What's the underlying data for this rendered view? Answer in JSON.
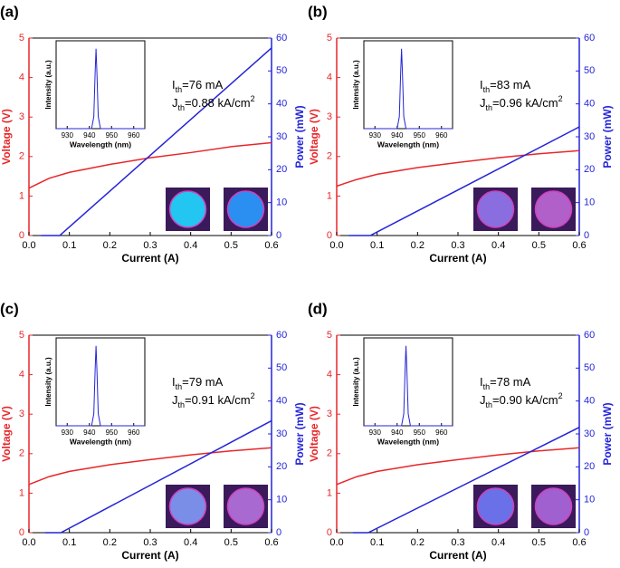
{
  "chart_data": [
    {
      "type": "line",
      "panel_label": "(a)",
      "xlabel": "Current (A)",
      "ylabel": "Voltage (V)",
      "y2label": "Power (mW)",
      "xlim": [
        0,
        0.6
      ],
      "xticks": [
        {
          "value": 0,
          "label": "0.0"
        },
        0.1,
        0.2,
        0.3,
        0.4,
        0.5,
        0.6
      ],
      "ylim": [
        0,
        5
      ],
      "yticks": [
        0,
        1,
        2,
        3,
        4,
        5
      ],
      "y2lim": [
        0,
        60
      ],
      "y2ticks": [
        0,
        10,
        20,
        30,
        40,
        50,
        60
      ],
      "series": [
        {
          "color": "#e8262a",
          "x": [
            0,
            0.02,
            0.05,
            0.1,
            0.2,
            0.3,
            0.4,
            0.5,
            0.6
          ],
          "values": [
            1.2,
            1.3,
            1.45,
            1.6,
            1.8,
            1.97,
            2.1,
            2.25,
            2.35
          ]
        },
        {
          "color": "#2424d8",
          "axis": "y2",
          "x": [
            0.03,
            0.076,
            0.6
          ],
          "values": [
            0,
            0,
            57
          ]
        }
      ],
      "annotations": [
        {
          "main": "I",
          "sub": "th",
          "rest": "=76 mA"
        },
        {
          "main": "J",
          "sub": "th",
          "rest": "=0.88 kA/cm",
          "sup": "2"
        }
      ],
      "inset": {
        "xlabel": "Wavelength (nm)",
        "ylabel": "Intensity (a.u.)",
        "xlim": [
          925,
          965
        ],
        "xticks": [
          930,
          940,
          950,
          960
        ],
        "ylim": [
          0,
          1.1
        ],
        "series": [
          {
            "color": "#2424d8",
            "x": [
              925,
              941,
              942,
              942.6,
              943,
              943.4,
              944,
              945,
              965
            ],
            "values": [
              0,
              0,
              0.15,
              0.7,
              1,
              0.7,
              0.15,
              0,
              0
            ]
          }
        ]
      }
    },
    {
      "type": "line",
      "panel_label": "(b)",
      "xlabel": "Current (A)",
      "ylabel": "Voltage (V)",
      "y2label": "Power (mW)",
      "xlim": [
        0,
        0.6
      ],
      "xticks": [
        {
          "value": 0,
          "label": "0.0"
        },
        0.1,
        0.2,
        0.3,
        0.4,
        0.5,
        0.6
      ],
      "ylim": [
        0,
        5
      ],
      "yticks": [
        0,
        1,
        2,
        3,
        4,
        5
      ],
      "y2lim": [
        0,
        60
      ],
      "y2ticks": [
        0,
        10,
        20,
        30,
        40,
        50,
        60
      ],
      "series": [
        {
          "color": "#e8262a",
          "x": [
            0,
            0.02,
            0.05,
            0.1,
            0.2,
            0.3,
            0.4,
            0.5,
            0.6
          ],
          "values": [
            1.25,
            1.32,
            1.42,
            1.55,
            1.72,
            1.85,
            1.97,
            2.07,
            2.15
          ]
        },
        {
          "color": "#2424d8",
          "axis": "y2",
          "x": [
            0.03,
            0.083,
            0.6
          ],
          "values": [
            0,
            0,
            33
          ]
        }
      ],
      "annotations": [
        {
          "main": "I",
          "sub": "th",
          "rest": "=83 mA"
        },
        {
          "main": "J",
          "sub": "th",
          "rest": "=0.96 kA/cm",
          "sup": "2"
        }
      ],
      "inset": {
        "xlabel": "Wavelength (nm)",
        "ylabel": "Intensity (a.u.)",
        "xlim": [
          925,
          965
        ],
        "xticks": [
          930,
          940,
          950,
          960
        ],
        "ylim": [
          0,
          1.1
        ],
        "series": [
          {
            "color": "#2424d8",
            "x": [
              925,
              940,
              941,
              941.6,
              942,
              942.4,
              943,
              944,
              965
            ],
            "values": [
              0,
              0,
              0.15,
              0.7,
              1,
              0.7,
              0.15,
              0,
              0
            ]
          }
        ]
      }
    },
    {
      "type": "line",
      "panel_label": "(c)",
      "xlabel": "Current (A)",
      "ylabel": "Voltage (V)",
      "y2label": "Power (mW)",
      "xlim": [
        0,
        0.6
      ],
      "xticks": [
        {
          "value": 0,
          "label": "0.0"
        },
        0.1,
        0.2,
        0.3,
        0.4,
        0.5,
        0.6
      ],
      "ylim": [
        0,
        5
      ],
      "yticks": [
        0,
        1,
        2,
        3,
        4,
        5
      ],
      "y2lim": [
        0,
        60
      ],
      "y2ticks": [
        0,
        10,
        20,
        30,
        40,
        50,
        60
      ],
      "series": [
        {
          "color": "#e8262a",
          "x": [
            0,
            0.02,
            0.05,
            0.1,
            0.2,
            0.3,
            0.4,
            0.5,
            0.6
          ],
          "values": [
            1.22,
            1.3,
            1.42,
            1.55,
            1.72,
            1.85,
            1.97,
            2.07,
            2.15
          ]
        },
        {
          "color": "#2424d8",
          "axis": "y2",
          "x": [
            0.04,
            0.079,
            0.6
          ],
          "values": [
            0,
            0,
            34
          ]
        }
      ],
      "annotations": [
        {
          "main": "I",
          "sub": "th",
          "rest": "=79 mA"
        },
        {
          "main": "J",
          "sub": "th",
          "rest": "=0.91 kA/cm",
          "sup": "2"
        }
      ],
      "inset": {
        "xlabel": "Wavelength (nm)",
        "ylabel": "Intensity (a.u.)",
        "xlim": [
          925,
          965
        ],
        "xticks": [
          930,
          940,
          950,
          960
        ],
        "ylim": [
          0,
          1.1
        ],
        "series": [
          {
            "color": "#2424d8",
            "x": [
              925,
              941,
              942,
              942.6,
              943,
              943.4,
              944,
              945,
              965
            ],
            "values": [
              0,
              0,
              0.15,
              0.7,
              1,
              0.7,
              0.15,
              0,
              0
            ]
          }
        ]
      }
    },
    {
      "type": "line",
      "panel_label": "(d)",
      "xlabel": "Current (A)",
      "ylabel": "Voltage (V)",
      "y2label": "Power (mW)",
      "xlim": [
        0,
        0.6
      ],
      "xticks": [
        {
          "value": 0,
          "label": "0.0"
        },
        0.1,
        0.2,
        0.3,
        0.4,
        0.5,
        0.6
      ],
      "ylim": [
        0,
        5
      ],
      "yticks": [
        0,
        1,
        2,
        3,
        4,
        5
      ],
      "y2lim": [
        0,
        60
      ],
      "y2ticks": [
        0,
        10,
        20,
        30,
        40,
        50,
        60
      ],
      "series": [
        {
          "color": "#e8262a",
          "x": [
            0,
            0.02,
            0.05,
            0.1,
            0.2,
            0.3,
            0.4,
            0.5,
            0.6
          ],
          "values": [
            1.22,
            1.3,
            1.42,
            1.55,
            1.72,
            1.85,
            1.97,
            2.07,
            2.15
          ]
        },
        {
          "color": "#2424d8",
          "axis": "y2",
          "x": [
            0.04,
            0.078,
            0.6
          ],
          "values": [
            0,
            0,
            32
          ]
        }
      ],
      "annotations": [
        {
          "main": "I",
          "sub": "th",
          "rest": "=78 mA"
        },
        {
          "main": "J",
          "sub": "th",
          "rest": "=0.90 kA/cm",
          "sup": "2"
        }
      ],
      "inset": {
        "xlabel": "Wavelength (nm)",
        "ylabel": "Intensity (a.u.)",
        "xlim": [
          925,
          965
        ],
        "xticks": [
          930,
          940,
          950,
          960
        ],
        "ylim": [
          0,
          1.1
        ],
        "series": [
          {
            "color": "#2424d8",
            "x": [
              925,
              942,
              943,
              943.6,
              944,
              944.4,
              945,
              946,
              965
            ],
            "values": [
              0,
              0,
              0.15,
              0.7,
              1,
              0.7,
              0.15,
              0,
              0
            ]
          }
        ]
      }
    }
  ]
}
